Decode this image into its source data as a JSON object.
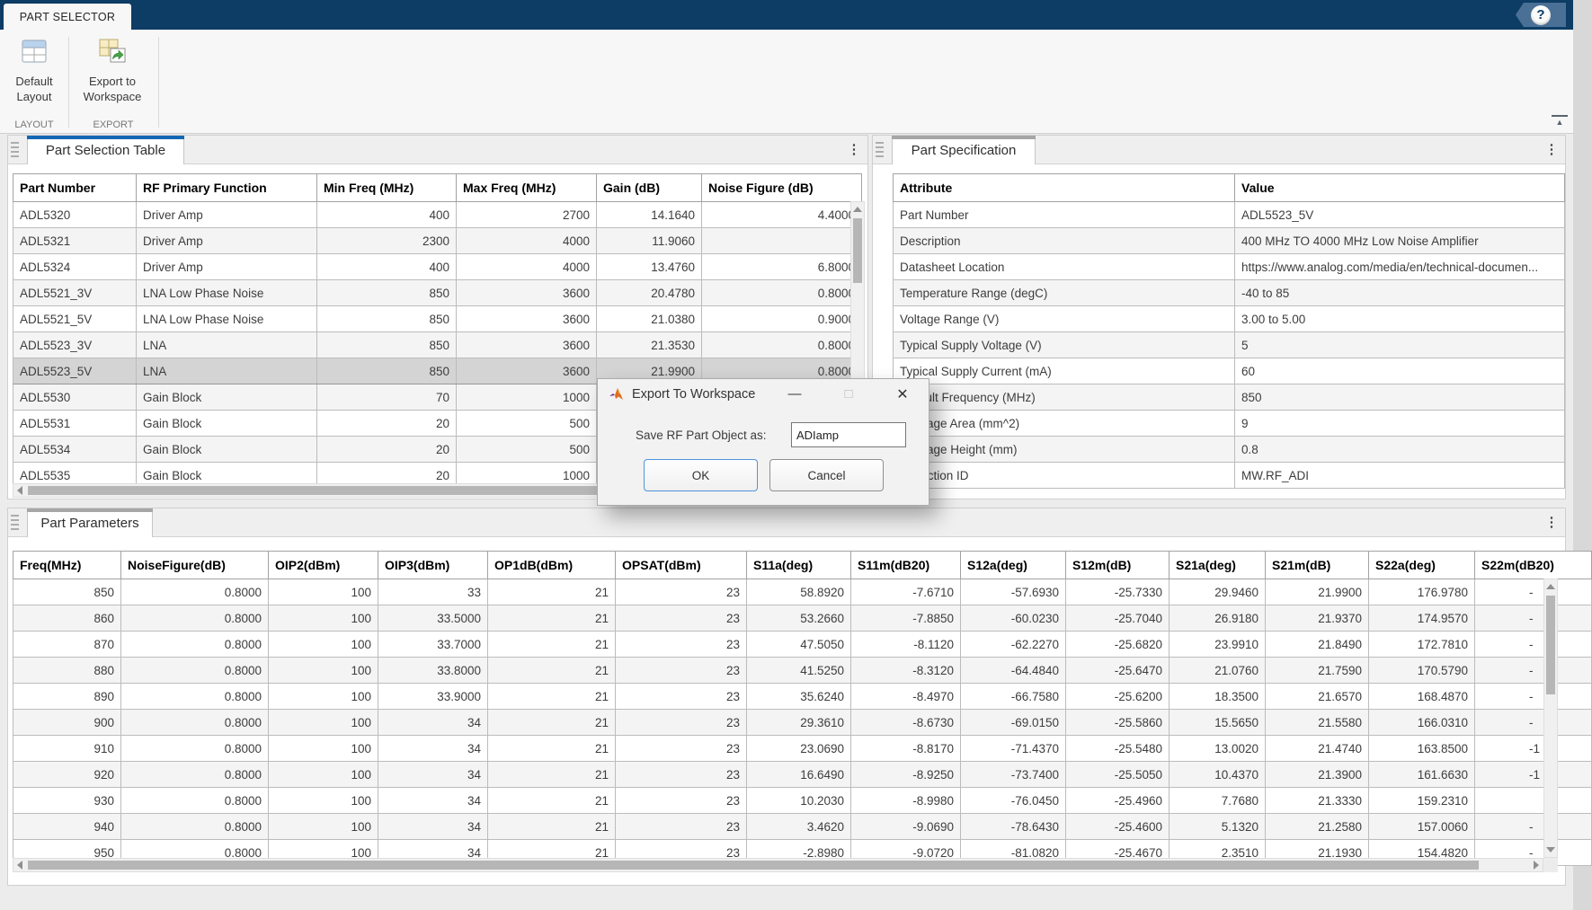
{
  "ribbon": {
    "tab_label": "PART SELECTOR",
    "default_layout_label": "Default Layout",
    "export_label": "Export to Workspace",
    "section_layout": "LAYOUT",
    "section_export": "EXPORT"
  },
  "icons": {
    "help": "?",
    "kebab": "⋮",
    "collapse": "▲",
    "minimize": "—",
    "maximize": "□",
    "close": "✕"
  },
  "part_selection_panel": {
    "tab_title": "Part Selection Table",
    "table": {
      "columns": [
        "Part Number",
        "RF Primary Function",
        "Min Freq (MHz)",
        "Max Freq (MHz)",
        "Gain (dB)",
        "Noise Figure (dB)"
      ],
      "selected_part": "ADL5523_5V",
      "rows": [
        [
          "ADL5320",
          "Driver Amp",
          "400",
          "2700",
          "14.1640",
          "4.4000"
        ],
        [
          "ADL5321",
          "Driver Amp",
          "2300",
          "4000",
          "11.9060",
          ""
        ],
        [
          "ADL5324",
          "Driver Amp",
          "400",
          "4000",
          "13.4760",
          "6.8000"
        ],
        [
          "ADL5521_3V",
          "LNA Low Phase Noise",
          "850",
          "3600",
          "20.4780",
          "0.8000"
        ],
        [
          "ADL5521_5V",
          "LNA Low Phase Noise",
          "850",
          "3600",
          "21.0380",
          "0.9000"
        ],
        [
          "ADL5523_3V",
          "LNA",
          "850",
          "3600",
          "21.3530",
          "0.8000"
        ],
        [
          "ADL5523_5V",
          "LNA",
          "850",
          "3600",
          "21.9900",
          "0.8000"
        ],
        [
          "ADL5530",
          "Gain Block",
          "70",
          "1000",
          "",
          ""
        ],
        [
          "ADL5531",
          "Gain Block",
          "20",
          "500",
          "",
          ""
        ],
        [
          "ADL5534",
          "Gain Block",
          "20",
          "500",
          "",
          ""
        ],
        [
          "ADL5535",
          "Gain Block",
          "20",
          "1000",
          "",
          ""
        ]
      ]
    }
  },
  "part_specification_panel": {
    "tab_title": "Part Specification",
    "table": {
      "columns": [
        "Attribute",
        "Value"
      ],
      "rows": [
        [
          "Part Number",
          "ADL5523_5V"
        ],
        [
          "Description",
          "400 MHz TO 4000 MHz Low Noise Amplifier"
        ],
        [
          "Datasheet Location",
          "https://www.analog.com/media/en/technical-documen..."
        ],
        [
          "Temperature Range (degC)",
          "-40 to 85"
        ],
        [
          "Voltage Range (V)",
          "3.00 to 5.00"
        ],
        [
          "Typical Supply Voltage (V)",
          "5"
        ],
        [
          "Typical Supply Current (mA)",
          "60"
        ],
        [
          "Default Frequency (MHz)",
          "850"
        ],
        [
          "Package Area (mm^2)",
          "9"
        ],
        [
          "Package Height (mm)",
          "0.8"
        ],
        [
          "Collection ID",
          "MW.RF_ADI"
        ]
      ]
    }
  },
  "part_parameters_panel": {
    "tab_title": "Part Parameters",
    "table": {
      "columns": [
        "Freq(MHz)",
        "NoiseFigure(dB)",
        "OIP2(dBm)",
        "OIP3(dBm)",
        "OP1dB(dBm)",
        "OPSAT(dBm)",
        "S11a(deg)",
        "S11m(dB20)",
        "S12a(deg)",
        "S12m(dB)",
        "S21a(deg)",
        "S21m(dB)",
        "S22a(deg)",
        "S22m(dB20)"
      ],
      "rows": [
        [
          "850",
          "0.8000",
          "100",
          "33",
          "21",
          "23",
          "58.8920",
          "-7.6710",
          "-57.6930",
          "-25.7330",
          "29.9460",
          "21.9900",
          "176.9780",
          "-"
        ],
        [
          "860",
          "0.8000",
          "100",
          "33.5000",
          "21",
          "23",
          "53.2660",
          "-7.8850",
          "-60.0230",
          "-25.7040",
          "26.9180",
          "21.9370",
          "174.9570",
          "-"
        ],
        [
          "870",
          "0.8000",
          "100",
          "33.7000",
          "21",
          "23",
          "47.5050",
          "-8.1120",
          "-62.2270",
          "-25.6820",
          "23.9910",
          "21.8490",
          "172.7810",
          "-"
        ],
        [
          "880",
          "0.8000",
          "100",
          "33.8000",
          "21",
          "23",
          "41.5250",
          "-8.3120",
          "-64.4840",
          "-25.6470",
          "21.0760",
          "21.7590",
          "170.5790",
          "-"
        ],
        [
          "890",
          "0.8000",
          "100",
          "33.9000",
          "21",
          "23",
          "35.6240",
          "-8.4970",
          "-66.7580",
          "-25.6200",
          "18.3500",
          "21.6570",
          "168.4870",
          "-"
        ],
        [
          "900",
          "0.8000",
          "100",
          "34",
          "21",
          "23",
          "29.3610",
          "-8.6730",
          "-69.0150",
          "-25.5860",
          "15.5650",
          "21.5580",
          "166.0310",
          "-"
        ],
        [
          "910",
          "0.8000",
          "100",
          "34",
          "21",
          "23",
          "23.0690",
          "-8.8170",
          "-71.4370",
          "-25.5480",
          "13.0020",
          "21.4740",
          "163.8500",
          "-1"
        ],
        [
          "920",
          "0.8000",
          "100",
          "34",
          "21",
          "23",
          "16.6490",
          "-8.9250",
          "-73.7400",
          "-25.5050",
          "10.4370",
          "21.3900",
          "161.6630",
          "-1"
        ],
        [
          "930",
          "0.8000",
          "100",
          "34",
          "21",
          "23",
          "10.2030",
          "-8.9980",
          "-76.0450",
          "-25.4960",
          "7.7680",
          "21.3330",
          "159.2310",
          ""
        ],
        [
          "940",
          "0.8000",
          "100",
          "34",
          "21",
          "23",
          "3.4620",
          "-9.0690",
          "-78.6430",
          "-25.4600",
          "5.1320",
          "21.2580",
          "157.0060",
          "-"
        ],
        [
          "950",
          "0.8000",
          "100",
          "34",
          "21",
          "23",
          "-2.8980",
          "-9.0720",
          "-81.0820",
          "-25.4670",
          "2.3510",
          "21.1930",
          "154.4820",
          "-"
        ]
      ]
    }
  },
  "dialog": {
    "title": "Export To Workspace",
    "field_label": "Save RF Part Object as:",
    "field_value": "ADIamp",
    "ok_label": "OK",
    "cancel_label": "Cancel"
  },
  "colors": {
    "ribbon_navy": "#0d3c64",
    "active_tab_accent": "#1467b3",
    "inactive_tab_accent": "#a6a6a6",
    "selected_row": "#d4d4d4"
  }
}
